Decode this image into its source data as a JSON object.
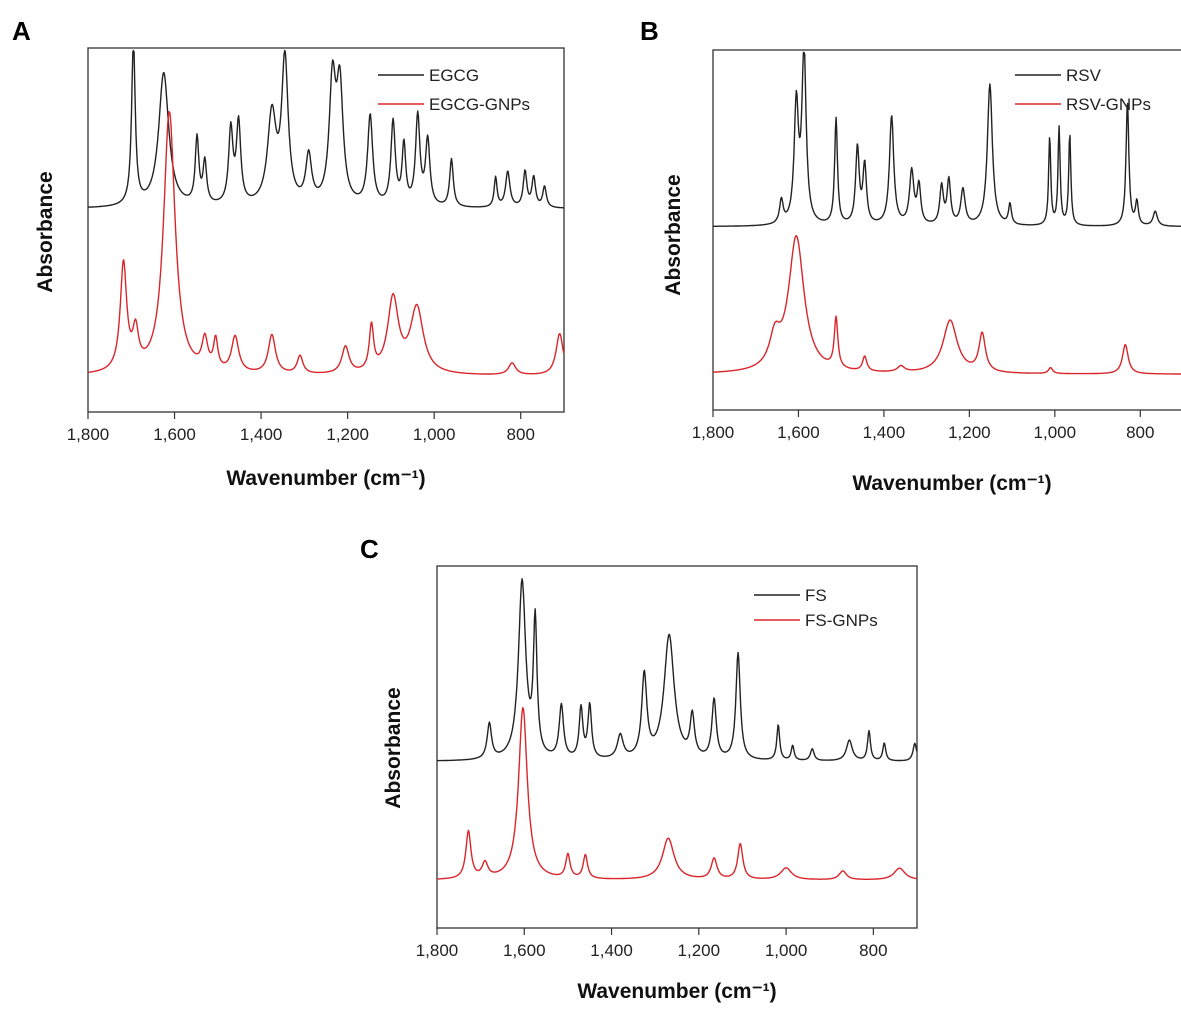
{
  "chart_data": [
    {
      "panel": "A",
      "type": "line",
      "xlabel": "Wavenumber (cm⁻¹)",
      "ylabel": "Absorbance",
      "xlim": [
        1800,
        700
      ],
      "x_reversed": true,
      "yticks_shown": false,
      "legend_position": "top-right",
      "xticks": [
        1800,
        1600,
        1400,
        1200,
        1000,
        800
      ],
      "xtick_labels": [
        "1,800",
        "1,600",
        "1,400",
        "1,200",
        "1,000",
        "800"
      ],
      "series": [
        {
          "name": "EGCG",
          "color": "#222222",
          "baseline": 0.62,
          "peaks": [
            [
              1695,
              0.55,
              5
            ],
            [
              1625,
              0.45,
              14
            ],
            [
              1548,
              0.22,
              5
            ],
            [
              1530,
              0.14,
              5
            ],
            [
              1470,
              0.25,
              6
            ],
            [
              1452,
              0.27,
              6
            ],
            [
              1375,
              0.3,
              12
            ],
            [
              1345,
              0.48,
              9
            ],
            [
              1290,
              0.16,
              8
            ],
            [
              1235,
              0.4,
              9
            ],
            [
              1218,
              0.38,
              9
            ],
            [
              1148,
              0.3,
              7
            ],
            [
              1095,
              0.28,
              6
            ],
            [
              1070,
              0.2,
              5
            ],
            [
              1038,
              0.3,
              6
            ],
            [
              1015,
              0.22,
              6
            ],
            [
              960,
              0.16,
              5
            ],
            [
              858,
              0.1,
              4
            ],
            [
              830,
              0.12,
              6
            ],
            [
              790,
              0.12,
              5
            ],
            [
              770,
              0.1,
              5
            ],
            [
              745,
              0.07,
              5
            ]
          ]
        },
        {
          "name": "EGCG-GNPs",
          "color": "#d9262b",
          "baseline": 0.06,
          "peaks": [
            [
              1718,
              0.36,
              9
            ],
            [
              1690,
              0.12,
              8
            ],
            [
              1612,
              0.88,
              16
            ],
            [
              1530,
              0.1,
              8
            ],
            [
              1505,
              0.1,
              6
            ],
            [
              1460,
              0.12,
              10
            ],
            [
              1375,
              0.13,
              10
            ],
            [
              1310,
              0.06,
              8
            ],
            [
              1205,
              0.09,
              10
            ],
            [
              1145,
              0.15,
              6
            ],
            [
              1095,
              0.25,
              15
            ],
            [
              1040,
              0.22,
              18
            ],
            [
              820,
              0.04,
              10
            ],
            [
              710,
              0.14,
              10
            ]
          ]
        }
      ]
    },
    {
      "panel": "B",
      "type": "line",
      "xlabel": "Wavenumber (cm⁻¹)",
      "ylabel": "Absorbance",
      "xlim": [
        1800,
        700
      ],
      "x_reversed": true,
      "yticks_shown": false,
      "legend_position": "top-right",
      "xticks": [
        1800,
        1600,
        1400,
        1200,
        1000,
        800
      ],
      "xtick_labels": [
        "1,800",
        "1,600",
        "1,400",
        "1,200",
        "1,000",
        "800"
      ],
      "series": [
        {
          "name": "RSV",
          "color": "#222222",
          "baseline": 0.56,
          "peaks": [
            [
              1640,
              0.08,
              5
            ],
            [
              1605,
              0.4,
              6
            ],
            [
              1587,
              0.58,
              6
            ],
            [
              1512,
              0.36,
              4
            ],
            [
              1462,
              0.26,
              5
            ],
            [
              1445,
              0.2,
              5
            ],
            [
              1382,
              0.37,
              6
            ],
            [
              1335,
              0.18,
              6
            ],
            [
              1318,
              0.13,
              5
            ],
            [
              1265,
              0.13,
              5
            ],
            [
              1248,
              0.15,
              5
            ],
            [
              1215,
              0.12,
              6
            ],
            [
              1152,
              0.48,
              7
            ],
            [
              1105,
              0.07,
              4
            ],
            [
              1012,
              0.3,
              3
            ],
            [
              990,
              0.33,
              3
            ],
            [
              965,
              0.31,
              3
            ],
            [
              830,
              0.42,
              4
            ],
            [
              808,
              0.08,
              4
            ],
            [
              765,
              0.05,
              6
            ]
          ]
        },
        {
          "name": "RSV-GNPs",
          "color": "#d9262b",
          "baseline": 0.06,
          "peaks": [
            [
              1655,
              0.1,
              15
            ],
            [
              1605,
              0.46,
              22
            ],
            [
              1512,
              0.17,
              5
            ],
            [
              1445,
              0.05,
              6
            ],
            [
              1360,
              0.02,
              10
            ],
            [
              1245,
              0.18,
              20
            ],
            [
              1170,
              0.13,
              9
            ],
            [
              1010,
              0.02,
              6
            ],
            [
              835,
              0.1,
              8
            ]
          ]
        }
      ]
    },
    {
      "panel": "C",
      "type": "line",
      "xlabel": "Wavenumber (cm⁻¹)",
      "ylabel": "Absorbance",
      "xlim": [
        1800,
        700
      ],
      "x_reversed": true,
      "yticks_shown": false,
      "legend_position": "top-right",
      "xticks": [
        1800,
        1600,
        1400,
        1200,
        1000,
        800
      ],
      "xtick_labels": [
        "1,800",
        "1,600",
        "1,400",
        "1,200",
        "1,000",
        "800"
      ],
      "series": [
        {
          "name": "FS",
          "color": "#222222",
          "baseline": 0.5,
          "peaks": [
            [
              1680,
              0.12,
              6
            ],
            [
              1605,
              0.6,
              10
            ],
            [
              1575,
              0.45,
              5
            ],
            [
              1515,
              0.18,
              6
            ],
            [
              1470,
              0.17,
              5
            ],
            [
              1450,
              0.18,
              5
            ],
            [
              1380,
              0.08,
              8
            ],
            [
              1325,
              0.28,
              7
            ],
            [
              1268,
              0.42,
              14
            ],
            [
              1215,
              0.14,
              6
            ],
            [
              1165,
              0.2,
              6
            ],
            [
              1110,
              0.36,
              6
            ],
            [
              1018,
              0.12,
              4
            ],
            [
              985,
              0.05,
              4
            ],
            [
              940,
              0.04,
              5
            ],
            [
              855,
              0.07,
              8
            ],
            [
              810,
              0.1,
              4
            ],
            [
              775,
              0.06,
              4
            ],
            [
              705,
              0.06,
              5
            ]
          ]
        },
        {
          "name": "FS-GNPs",
          "color": "#d9262b",
          "baseline": 0.1,
          "peaks": [
            [
              1728,
              0.16,
              7
            ],
            [
              1690,
              0.05,
              8
            ],
            [
              1603,
              0.58,
              12
            ],
            [
              1500,
              0.08,
              6
            ],
            [
              1460,
              0.08,
              6
            ],
            [
              1270,
              0.14,
              16
            ],
            [
              1165,
              0.07,
              8
            ],
            [
              1105,
              0.12,
              7
            ],
            [
              1000,
              0.04,
              15
            ],
            [
              870,
              0.03,
              10
            ],
            [
              740,
              0.04,
              15
            ]
          ]
        }
      ]
    }
  ]
}
